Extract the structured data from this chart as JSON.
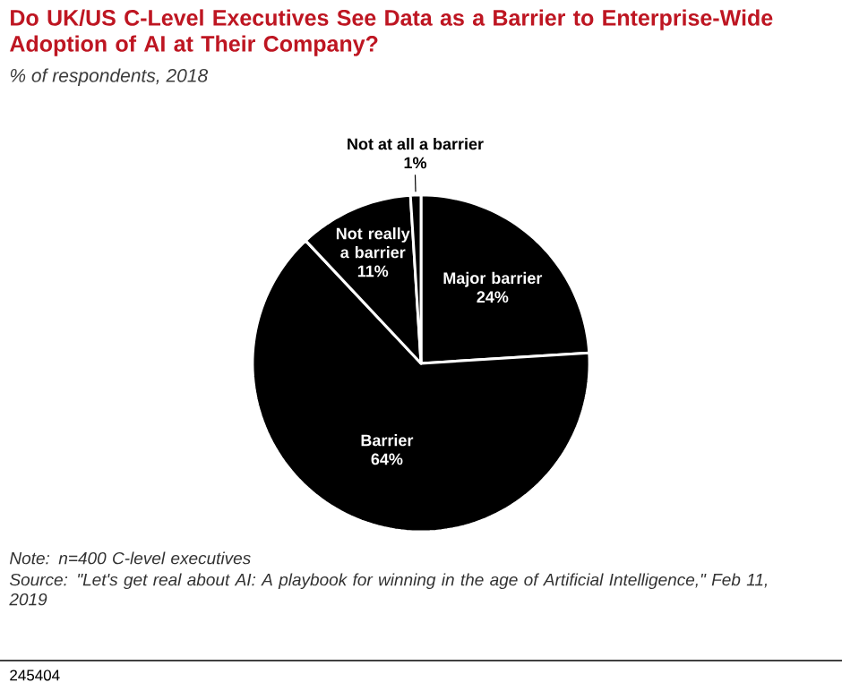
{
  "chart_data": {
    "type": "pie",
    "title": "Do UK/US C-Level Executives See Data as a Barrier to Enterprise-Wide Adoption of AI at Their Company?",
    "subtitle": "% of respondents, 2018",
    "categories": [
      "Major barrier",
      "Barrier",
      "Not really a barrier",
      "Not at all a barrier"
    ],
    "values": [
      24,
      64,
      11,
      1
    ],
    "value_labels": [
      "24%",
      "64%",
      "11%",
      "1%"
    ],
    "colors": [
      "#000000",
      "#000000",
      "#000000",
      "#000000"
    ],
    "annotations": [
      "Note: n=400 C-level executives",
      "Source: \"Let's get real about AI: A playbook for winning in the age of Artificial Intelligence,\" Feb 11, 2019",
      "245404"
    ]
  }
}
